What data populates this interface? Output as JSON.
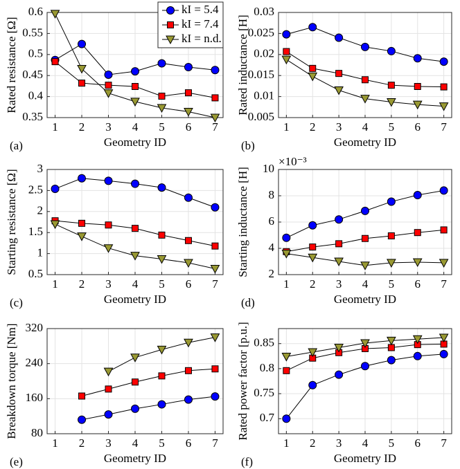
{
  "chart_data": [
    {
      "type": "line",
      "panel_label": "(a)",
      "ylabel": "Rated resistance [Ω]",
      "xlabel": "Geometry ID",
      "grid": true,
      "legend": "upper right",
      "line_color": "#000000",
      "x": [
        1,
        2,
        3,
        4,
        5,
        6,
        7
      ],
      "xlim": [
        0.7,
        7.3
      ],
      "xticks": [
        1,
        2,
        3,
        4,
        5,
        6,
        7
      ],
      "ylim": [
        0.35,
        0.6
      ],
      "yticks": [
        0.35,
        0.4,
        0.45,
        0.5,
        0.55,
        0.6
      ],
      "series": [
        {
          "name": "kI = 5.4",
          "color": "#0000ff",
          "marker": "circle",
          "values": [
            0.487,
            0.525,
            0.452,
            0.46,
            0.479,
            0.47,
            0.463
          ]
        },
        {
          "name": "kI = 7.4",
          "color": "#ff0000",
          "marker": "square",
          "values": [
            0.483,
            0.432,
            0.427,
            0.424,
            0.401,
            0.409,
            0.397
          ]
        },
        {
          "name": "kI = n.d.",
          "color": "#999933",
          "marker": "triangle",
          "values": [
            0.597,
            0.466,
            0.408,
            0.388,
            0.373,
            0.364,
            0.35
          ]
        }
      ]
    },
    {
      "type": "line",
      "panel_label": "(b)",
      "ylabel": "Rated inductance [H]",
      "xlabel": "Geometry ID",
      "grid": true,
      "line_color": "#000000",
      "x": [
        1,
        2,
        3,
        4,
        5,
        6,
        7
      ],
      "xlim": [
        0.7,
        7.3
      ],
      "xticks": [
        1,
        2,
        3,
        4,
        5,
        6,
        7
      ],
      "ylim": [
        0.005,
        0.03
      ],
      "yticks": [
        0.005,
        0.01,
        0.015,
        0.02,
        0.025,
        0.03
      ],
      "series": [
        {
          "color": "#0000ff",
          "marker": "circle",
          "values": [
            0.0248,
            0.0265,
            0.024,
            0.0218,
            0.0208,
            0.0191,
            0.0183
          ]
        },
        {
          "color": "#ff0000",
          "marker": "square",
          "values": [
            0.0207,
            0.0167,
            0.0155,
            0.014,
            0.0127,
            0.0124,
            0.0123
          ]
        },
        {
          "color": "#999933",
          "marker": "triangle",
          "values": [
            0.0188,
            0.0148,
            0.0115,
            0.0095,
            0.0087,
            0.0081,
            0.0077
          ]
        }
      ]
    },
    {
      "type": "line",
      "panel_label": "(c)",
      "ylabel": "Starting resistance [Ω]",
      "xlabel": "Geometry ID",
      "grid": true,
      "line_color": "#000000",
      "x": [
        1,
        2,
        3,
        4,
        5,
        6,
        7
      ],
      "xlim": [
        0.7,
        7.3
      ],
      "xticks": [
        1,
        2,
        3,
        4,
        5,
        6,
        7
      ],
      "ylim": [
        0.5,
        3
      ],
      "yticks": [
        0.5,
        1,
        1.5,
        2,
        2.5,
        3
      ],
      "series": [
        {
          "color": "#0000ff",
          "marker": "circle",
          "values": [
            2.54,
            2.79,
            2.73,
            2.66,
            2.57,
            2.33,
            2.1
          ]
        },
        {
          "color": "#ff0000",
          "marker": "square",
          "values": [
            1.78,
            1.72,
            1.68,
            1.6,
            1.44,
            1.31,
            1.18
          ]
        },
        {
          "color": "#999933",
          "marker": "triangle",
          "values": [
            1.7,
            1.41,
            1.13,
            0.95,
            0.87,
            0.78,
            0.64
          ]
        }
      ]
    },
    {
      "type": "line",
      "panel_label": "(d)",
      "ylabel": "Starting inductance [H]",
      "xlabel": "Geometry ID",
      "axis_multiplier": "×10⁻³",
      "grid": true,
      "line_color": "#000000",
      "x": [
        1,
        2,
        3,
        4,
        5,
        6,
        7
      ],
      "xlim": [
        0.7,
        7.3
      ],
      "xticks": [
        1,
        2,
        3,
        4,
        5,
        6,
        7
      ],
      "ylim": [
        2,
        10
      ],
      "yticks": [
        2,
        4,
        6,
        8,
        10
      ],
      "series": [
        {
          "color": "#0000ff",
          "marker": "circle",
          "values": [
            4.8,
            5.75,
            6.2,
            6.85,
            7.55,
            8.05,
            8.4
          ]
        },
        {
          "color": "#ff0000",
          "marker": "square",
          "values": [
            3.75,
            4.1,
            4.35,
            4.75,
            4.95,
            5.2,
            5.4
          ]
        },
        {
          "color": "#999933",
          "marker": "triangle",
          "values": [
            3.6,
            3.3,
            3.0,
            2.7,
            2.9,
            2.95,
            2.9
          ]
        }
      ]
    },
    {
      "type": "line",
      "panel_label": "(e)",
      "ylabel": "Breakdown torque [Nm]",
      "xlabel": "Geometry ID",
      "grid": true,
      "line_color": "#000000",
      "x": [
        1,
        2,
        3,
        4,
        5,
        6,
        7
      ],
      "xlim": [
        0.7,
        7.3
      ],
      "xticks": [
        1,
        2,
        3,
        4,
        5,
        6,
        7
      ],
      "ylim": [
        80,
        320
      ],
      "yticks": [
        80,
        160,
        240,
        320
      ],
      "series": [
        {
          "color": "#0000ff",
          "marker": "circle",
          "values": [
            null,
            112,
            124,
            137,
            147,
            158,
            165
          ]
        },
        {
          "color": "#ff0000",
          "marker": "square",
          "values": [
            null,
            166,
            182,
            198,
            212,
            224,
            228
          ]
        },
        {
          "color": "#999933",
          "marker": "triangle",
          "values": [
            null,
            null,
            222,
            254,
            272,
            288,
            300
          ]
        }
      ]
    },
    {
      "type": "line",
      "panel_label": "(f)",
      "ylabel": "Rated power factor [p.u.]",
      "xlabel": "Geometry ID",
      "grid": true,
      "line_color": "#000000",
      "x": [
        1,
        2,
        3,
        4,
        5,
        6,
        7
      ],
      "xlim": [
        0.7,
        7.3
      ],
      "xticks": [
        1,
        2,
        3,
        4,
        5,
        6,
        7
      ],
      "ylim": [
        0.67,
        0.88
      ],
      "yticks": [
        0.7,
        0.75,
        0.8,
        0.85
      ],
      "series": [
        {
          "color": "#0000ff",
          "marker": "circle",
          "values": [
            0.7,
            0.767,
            0.788,
            0.805,
            0.817,
            0.825,
            0.829
          ]
        },
        {
          "color": "#ff0000",
          "marker": "square",
          "values": [
            0.796,
            0.821,
            0.832,
            0.84,
            0.842,
            0.848,
            0.849
          ]
        },
        {
          "color": "#999933",
          "marker": "triangle",
          "values": [
            0.824,
            0.833,
            0.842,
            0.851,
            0.856,
            0.859,
            0.862
          ]
        }
      ]
    }
  ]
}
